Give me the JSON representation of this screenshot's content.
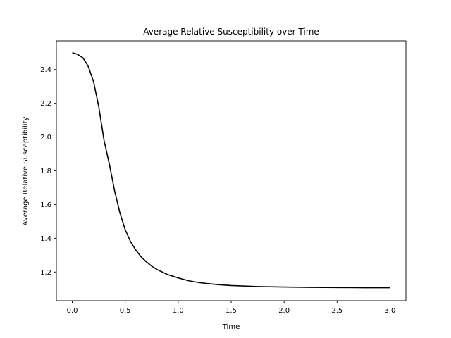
{
  "chart_data": {
    "type": "line",
    "title": "Average Relative Susceptibility over Time",
    "xlabel": "Time",
    "ylabel": "Average Relative Susceptibility",
    "xlim": [
      -0.15,
      3.15
    ],
    "ylim": [
      1.03,
      2.57
    ],
    "xticks": [
      0.0,
      0.5,
      1.0,
      1.5,
      2.0,
      2.5,
      3.0
    ],
    "xtick_labels": [
      "0.0",
      "0.5",
      "1.0",
      "1.5",
      "2.0",
      "2.5",
      "3.0"
    ],
    "yticks": [
      1.2,
      1.4,
      1.6,
      1.8,
      2.0,
      2.2,
      2.4
    ],
    "ytick_labels": [
      "1.2",
      "1.4",
      "1.6",
      "1.8",
      "2.0",
      "2.2",
      "2.4"
    ],
    "grid": false,
    "series": [
      {
        "color": "#000000",
        "x": [
          0.0,
          0.05,
          0.1,
          0.15,
          0.2,
          0.25,
          0.3,
          0.35,
          0.4,
          0.45,
          0.5,
          0.55,
          0.6,
          0.65,
          0.7,
          0.75,
          0.8,
          0.9,
          1.0,
          1.1,
          1.2,
          1.3,
          1.4,
          1.5,
          1.75,
          2.0,
          2.25,
          2.5,
          2.75,
          3.0
        ],
        "values": [
          2.5,
          2.49,
          2.47,
          2.42,
          2.33,
          2.18,
          1.98,
          1.84,
          1.68,
          1.55,
          1.45,
          1.38,
          1.33,
          1.29,
          1.26,
          1.235,
          1.215,
          1.185,
          1.165,
          1.148,
          1.137,
          1.13,
          1.124,
          1.12,
          1.114,
          1.111,
          1.109,
          1.108,
          1.107,
          1.107
        ]
      }
    ]
  }
}
